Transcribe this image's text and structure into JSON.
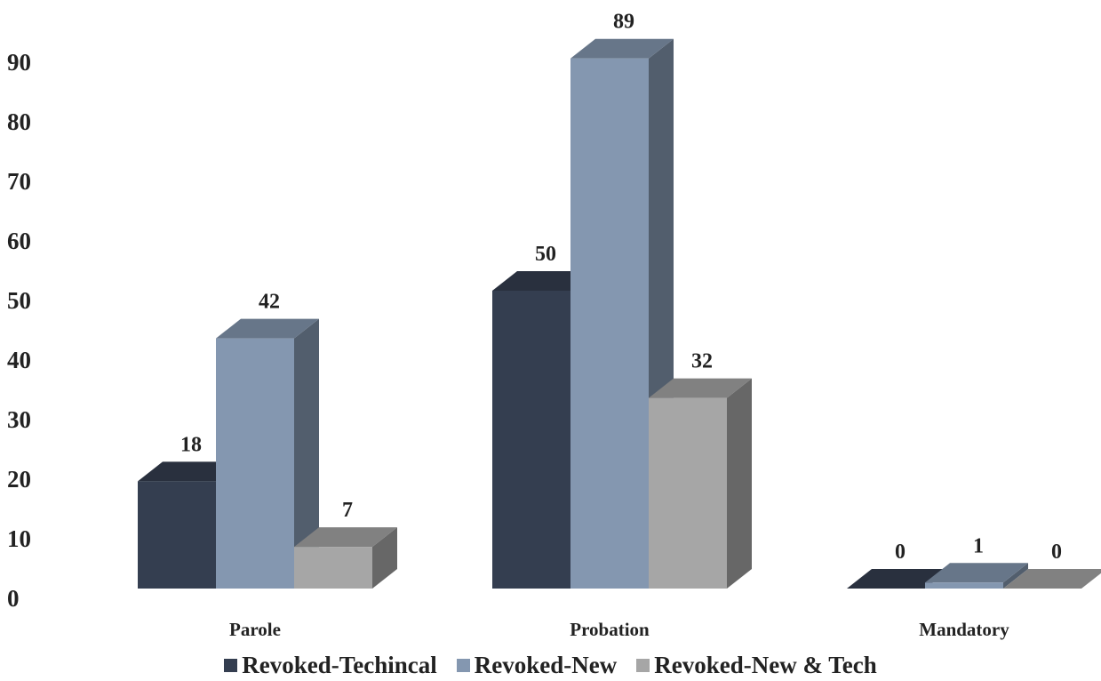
{
  "chart_data": {
    "type": "bar",
    "title": "",
    "xlabel": "",
    "ylabel": "",
    "categories": [
      "Parole",
      "Probation",
      "Mandatory"
    ],
    "series": [
      {
        "name": "Revoked-Techincal",
        "values": [
          18,
          50,
          0
        ],
        "color": "#343e50"
      },
      {
        "name": "Revoked-New",
        "values": [
          42,
          89,
          1
        ],
        "color": "#8497b0"
      },
      {
        "name": "Revoked-New & Tech",
        "values": [
          7,
          32,
          0
        ],
        "color": "#a6a6a6"
      }
    ],
    "ylim": [
      0,
      90
    ],
    "yticks": [
      "0",
      "10",
      "20",
      "30",
      "40",
      "50",
      "60",
      "70",
      "80",
      "90"
    ],
    "grid": false,
    "legend_position": "bottom",
    "style": "3d-clustered-column"
  }
}
